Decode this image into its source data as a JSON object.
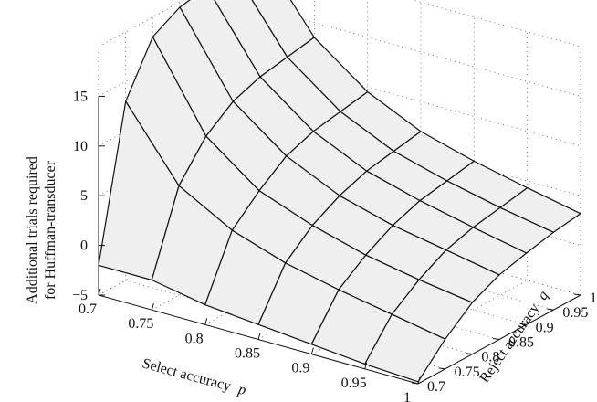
{
  "chart_data": {
    "type": "surface",
    "title": "",
    "xlabel": "Select accuracy",
    "xlabel_var": "p",
    "ylabel": "Reject accuracy",
    "ylabel_var": "q",
    "zlabel_line1": "Additional trials required",
    "zlabel_line2": "for Huffman-transducer",
    "x": [
      0.7,
      0.75,
      0.8,
      0.85,
      0.9,
      0.95,
      1.0
    ],
    "y": [
      0.7,
      0.75,
      0.8,
      0.85,
      0.9,
      0.95,
      1.0
    ],
    "z": [
      [
        -2.0,
        -2.0,
        -3.0,
        -3.5,
        -4.0,
        -4.5,
        -4.8
      ],
      [
        13.0,
        6.0,
        3.0,
        1.2,
        0.0,
        -1.0,
        -2.0
      ],
      [
        18.0,
        9.5,
        5.5,
        3.5,
        2.0,
        1.0,
        0.2
      ],
      [
        19.5,
        11.5,
        7.5,
        5.0,
        3.5,
        2.5,
        1.5
      ],
      [
        20.0,
        12.5,
        8.5,
        6.0,
        4.5,
        3.3,
        2.2
      ],
      [
        20.2,
        13.0,
        9.0,
        6.5,
        5.0,
        3.8,
        2.8
      ],
      [
        20.5,
        13.5,
        9.5,
        7.0,
        5.5,
        4.3,
        3.2
      ]
    ],
    "xlim": [
      0.7,
      1.0
    ],
    "ylim": [
      0.7,
      1.0
    ],
    "zlim": [
      -5,
      20
    ],
    "x_ticks": [
      "0.7",
      "0.75",
      "0.8",
      "0.85",
      "0.9",
      "0.95",
      "1"
    ],
    "y_ticks": [
      "0.7",
      "0.75",
      "0.8",
      "0.85",
      "0.9",
      "0.95",
      "1"
    ],
    "z_ticks": [
      "−5",
      "0",
      "5",
      "10",
      "15"
    ],
    "z_tick_values": [
      -5,
      0,
      5,
      10,
      15
    ],
    "grid": true,
    "colors": {
      "surface": "#efefef",
      "edge": "#111111",
      "grid": "#555555"
    }
  }
}
